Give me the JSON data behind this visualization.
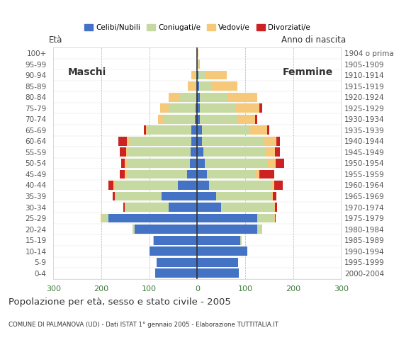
{
  "age_groups": [
    "0-4",
    "5-9",
    "10-14",
    "15-19",
    "20-24",
    "25-29",
    "30-34",
    "35-39",
    "40-44",
    "45-49",
    "50-54",
    "55-59",
    "60-64",
    "65-69",
    "70-74",
    "75-79",
    "80-84",
    "85-89",
    "90-94",
    "95-99",
    "100+"
  ],
  "birth_years": [
    "2000-2004",
    "1995-1999",
    "1990-1994",
    "1985-1989",
    "1980-1984",
    "1975-1979",
    "1970-1974",
    "1965-1969",
    "1960-1964",
    "1955-1959",
    "1950-1954",
    "1945-1949",
    "1940-1944",
    "1935-1939",
    "1930-1934",
    "1925-1929",
    "1920-1924",
    "1915-1919",
    "1910-1914",
    "1905-1909",
    "1904 o prima"
  ],
  "males": {
    "celibe": [
      88,
      85,
      100,
      90,
      130,
      185,
      60,
      75,
      40,
      22,
      16,
      14,
      12,
      12,
      5,
      4,
      2,
      0,
      0,
      0,
      0
    ],
    "coniugato": [
      0,
      0,
      0,
      2,
      5,
      15,
      90,
      95,
      130,
      125,
      130,
      130,
      130,
      90,
      65,
      55,
      35,
      5,
      4,
      0,
      0
    ],
    "vedovo": [
      0,
      0,
      0,
      0,
      0,
      2,
      2,
      2,
      5,
      5,
      5,
      5,
      5,
      5,
      12,
      18,
      22,
      15,
      8,
      1,
      0
    ],
    "divorziato": [
      0,
      0,
      0,
      0,
      0,
      0,
      2,
      5,
      10,
      10,
      8,
      12,
      18,
      4,
      0,
      0,
      0,
      0,
      0,
      0,
      0
    ]
  },
  "females": {
    "nubile": [
      87,
      85,
      105,
      90,
      125,
      125,
      50,
      40,
      25,
      20,
      15,
      12,
      10,
      10,
      5,
      5,
      5,
      4,
      2,
      0,
      0
    ],
    "coniugata": [
      0,
      0,
      0,
      3,
      10,
      35,
      110,
      115,
      130,
      100,
      130,
      130,
      130,
      100,
      80,
      75,
      60,
      25,
      15,
      2,
      0
    ],
    "vedova": [
      0,
      0,
      0,
      0,
      0,
      2,
      2,
      2,
      5,
      10,
      18,
      20,
      25,
      35,
      35,
      50,
      60,
      55,
      45,
      4,
      2
    ],
    "divorziata": [
      0,
      0,
      0,
      0,
      0,
      2,
      5,
      8,
      18,
      30,
      18,
      10,
      8,
      5,
      5,
      5,
      0,
      0,
      0,
      0,
      0
    ]
  },
  "colors": {
    "celibe": "#4472c4",
    "coniugato": "#c5d9a0",
    "vedovo": "#f5c87a",
    "divorziato": "#cc2222"
  },
  "xlim": 300,
  "title": "Popolazione per età, sesso e stato civile - 2005",
  "subtitle": "COMUNE DI PALMANOVA (UD) - Dati ISTAT 1° gennaio 2005 - Elaborazione TUTTITALIA.IT",
  "ylabel_left": "Età",
  "ylabel_right": "Anno di nascita",
  "legend_labels": [
    "Celibi/Nubili",
    "Coniugati/e",
    "Vedovi/e",
    "Divorziati/e"
  ]
}
